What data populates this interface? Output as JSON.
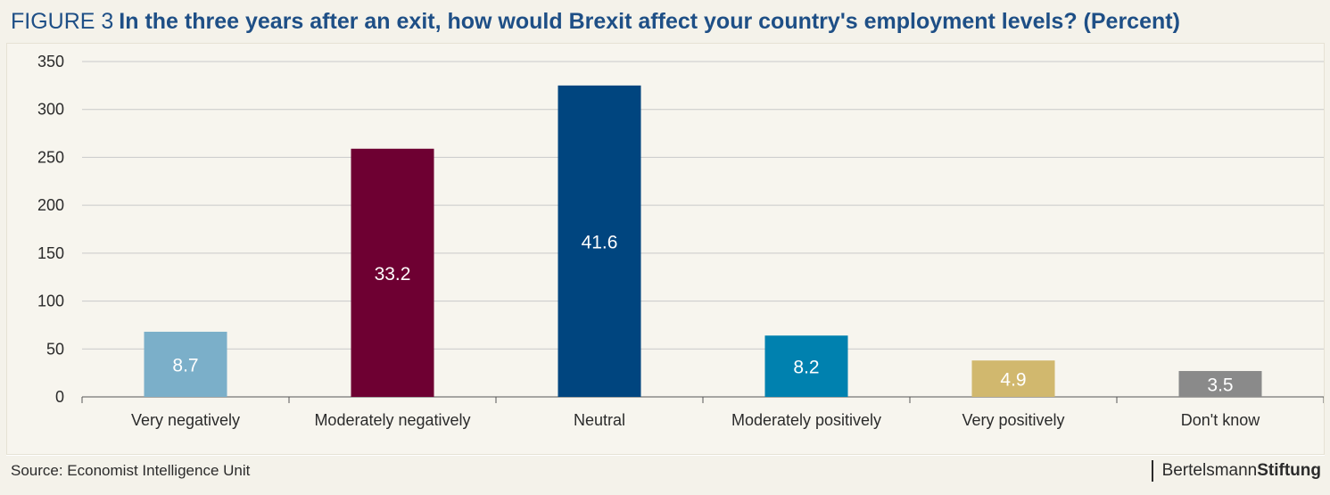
{
  "header": {
    "figure_label": "FIGURE 3",
    "title": "In the three years after an exit, how would Brexit affect your country's employment levels? (Percent)"
  },
  "footer": {
    "source": "Source: Economist Intelligence Unit",
    "brand_part1": "Bertelsmann",
    "brand_part2": "Stiftung"
  },
  "chart_data": {
    "type": "bar",
    "title": "In the three years after an exit, how would Brexit affect your country's employment levels? (Percent)",
    "categories": [
      "Very negatively",
      "Moderately negatively",
      "Neutral",
      "Moderately positively",
      "Very positively",
      "Don't know"
    ],
    "values": [
      68,
      259,
      325,
      64,
      38,
      27
    ],
    "data_labels": [
      "8.7",
      "33.2",
      "41.6",
      "8.2",
      "4.9",
      "3.5"
    ],
    "colors": [
      "#7bafc9",
      "#6e0032",
      "#00457f",
      "#0081af",
      "#d1b86e",
      "#8a8a8a"
    ],
    "ylim": [
      0,
      350
    ],
    "yticks": [
      0,
      50,
      100,
      150,
      200,
      250,
      300,
      350
    ],
    "grid": true,
    "xlabel": "",
    "ylabel": ""
  }
}
